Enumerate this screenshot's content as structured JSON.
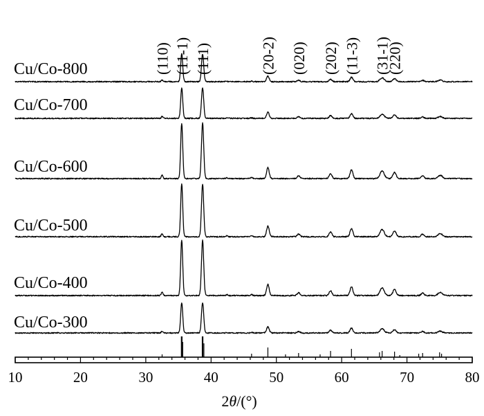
{
  "chart_data": {
    "type": "line",
    "xlabel_prefix": "2",
    "xlabel_symbol": "θ",
    "xlabel_suffix": "/(°)",
    "xlim": [
      10,
      80
    ],
    "x_ticks": [
      10,
      20,
      30,
      40,
      50,
      60,
      70,
      80
    ],
    "ylabel": "",
    "grid": false,
    "series": [
      {
        "name": "Cu/Co-800"
      },
      {
        "name": "Cu/Co-700"
      },
      {
        "name": "Cu/Co-600"
      },
      {
        "name": "Cu/Co-500"
      },
      {
        "name": "Cu/Co-400"
      },
      {
        "name": "Cu/Co-300"
      }
    ],
    "peaks": [
      {
        "label": "(110)",
        "two_theta": 32.5
      },
      {
        "label": "(11-1)",
        "two_theta": 35.5
      },
      {
        "label": "(111)",
        "two_theta": 38.7
      },
      {
        "label": "(20-2)",
        "two_theta": 48.7
      },
      {
        "label": "(020)",
        "two_theta": 53.4
      },
      {
        "label": "(202)",
        "two_theta": 58.3
      },
      {
        "label": "(11-3)",
        "two_theta": 61.5
      },
      {
        "label": "(31-1)",
        "two_theta": 66.2
      },
      {
        "label": "(220)",
        "two_theta": 68.1
      }
    ]
  }
}
